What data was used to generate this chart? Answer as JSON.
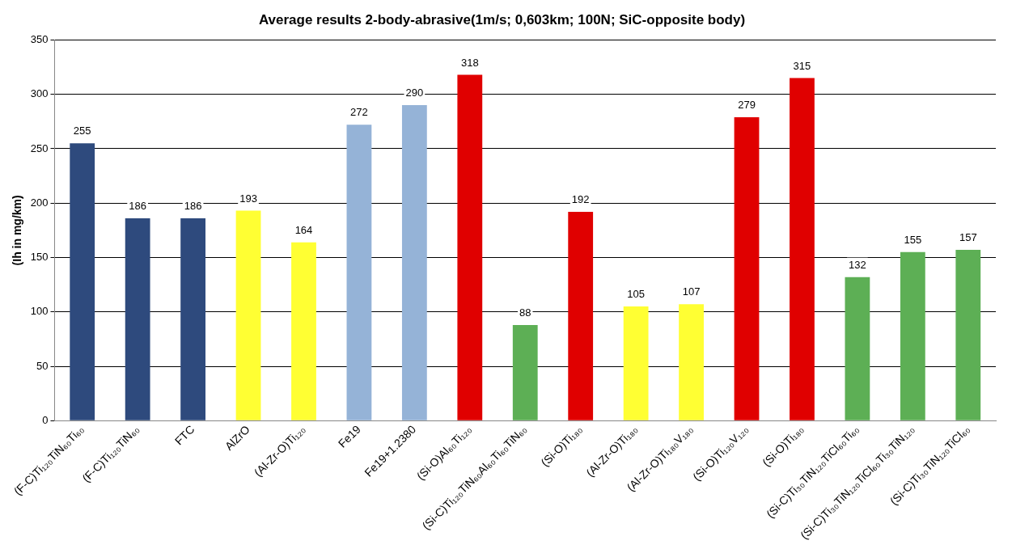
{
  "chart_data": {
    "type": "bar",
    "title": "Average results 2-body-abrasive(1m/s; 0,603km; 100N; SiC-opposite body)",
    "ylabel": "(Ih in mg/km)",
    "categories": [
      "(F-C)Ti₁₂₀TiN₆₀Ti₆₀",
      "(F-C)Ti₁₂₀TiN₆₀",
      "FTC",
      "AlZrO",
      "(Al-Zr-O)Ti₁₂₀",
      "Fe19",
      "Fe19+1.2380",
      "(Si-O)Al₆₀Ti₁₂₀",
      "(Si-C)Ti₁₂₀TiN₆₀Al₆₀Ti₆₀TiN₆₀",
      "(Si-O)Ti₁₈₀",
      "(Al-Zr-O)Ti₁₈₀",
      "(Al-Zr-O)Ti₁₈₀V₁₈₀",
      "(Si-O)Ti₁₂₀V₁₂₀",
      "(Si-O)Ti₁₈₀",
      "(Si-C)Ti₃₀TiN₁₂₀TiCl₆₀Ti₆₀",
      "(Si-C)Ti₃₀TiN₁₂₀TiCl₆₀Ti₃₀TiN₁₂₀",
      "(Si-C)Ti₃₀TiN₁₂₀TiCl₆₀"
    ],
    "values": [
      255,
      186,
      186,
      193,
      164,
      272,
      290,
      318,
      88,
      192,
      105,
      107,
      279,
      315,
      132,
      155,
      157
    ],
    "colors": [
      "#2e4a7d",
      "#2e4a7d",
      "#2e4a7d",
      "#ffff33",
      "#ffff33",
      "#95b3d7",
      "#95b3d7",
      "#e00000",
      "#5daf55",
      "#e00000",
      "#ffff33",
      "#ffff33",
      "#e00000",
      "#e00000",
      "#5daf55",
      "#5daf55",
      "#5daf55"
    ],
    "ylim": [
      0,
      350
    ],
    "yticks": [
      0,
      50,
      100,
      150,
      200,
      250,
      300,
      350
    ],
    "grid": "y",
    "data_labels": true
  }
}
